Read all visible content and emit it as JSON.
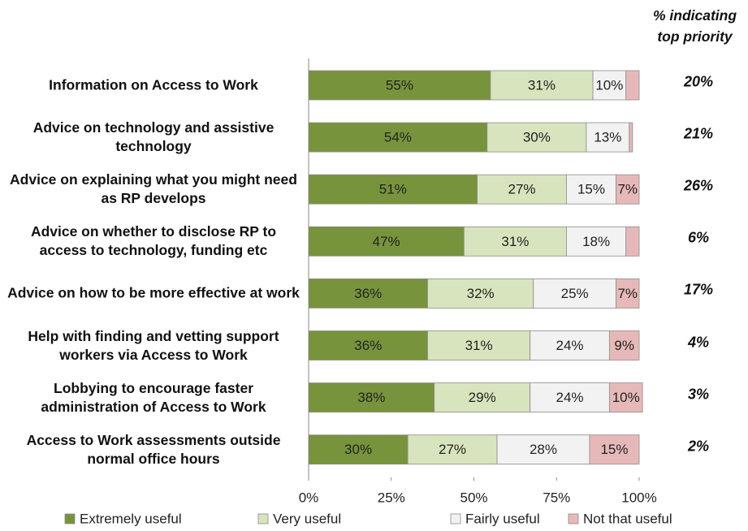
{
  "chart_data": {
    "type": "stacked-bar-horizontal",
    "categories": [
      "Information on Access to Work",
      "Advice on technology and assistive technology",
      "Advice on explaining what you might need as RP develops",
      "Advice on whether to disclose RP to access to technology, funding etc",
      "Advice on how to be more effective at work",
      "Help with finding and vetting support workers via Access to Work",
      "Lobbying to encourage faster administration of Access to Work",
      "Access to Work assessments outside normal office hours"
    ],
    "series": [
      {
        "name": "Extremely useful",
        "color": "#77933c",
        "values": [
          55,
          54,
          51,
          47,
          36,
          36,
          38,
          30
        ],
        "value_labels": [
          "55%",
          "54%",
          "51%",
          "47%",
          "36%",
          "36%",
          "38%",
          "30%"
        ]
      },
      {
        "name": "Very useful",
        "color": "#d7e4bd",
        "values": [
          31,
          30,
          27,
          31,
          32,
          31,
          29,
          27
        ],
        "value_labels": [
          "31%",
          "30%",
          "27%",
          "31%",
          "32%",
          "31%",
          "29%",
          "27%"
        ]
      },
      {
        "name": "Fairly useful",
        "color": "#f2f2f2",
        "values": [
          10,
          13,
          15,
          18,
          25,
          24,
          24,
          28
        ],
        "value_labels": [
          "10%",
          "13%",
          "15%",
          "18%",
          "25%",
          "24%",
          "24%",
          "28%"
        ]
      },
      {
        "name": "Not that useful",
        "color": "#e6b9b8",
        "values": [
          4,
          1,
          7,
          4,
          7,
          9,
          10,
          15
        ],
        "value_labels": [
          null,
          null,
          "7%",
          null,
          "7%",
          "9%",
          "10%",
          "15%"
        ]
      }
    ],
    "xlim": [
      0,
      100
    ],
    "xticks": [
      {
        "value": 0,
        "label": "0%"
      },
      {
        "value": 25,
        "label": "25%"
      },
      {
        "value": 50,
        "label": "50%"
      },
      {
        "value": 75,
        "label": "75%"
      },
      {
        "value": 100,
        "label": "100%"
      }
    ],
    "legend": "bottom",
    "top_priority": {
      "title": "% indicating top priority",
      "values": [
        20,
        21,
        26,
        6,
        17,
        4,
        3,
        2
      ],
      "value_labels": [
        "20%",
        "21%",
        "26%",
        "6%",
        "17%",
        "4%",
        "3%",
        "2%"
      ]
    }
  }
}
